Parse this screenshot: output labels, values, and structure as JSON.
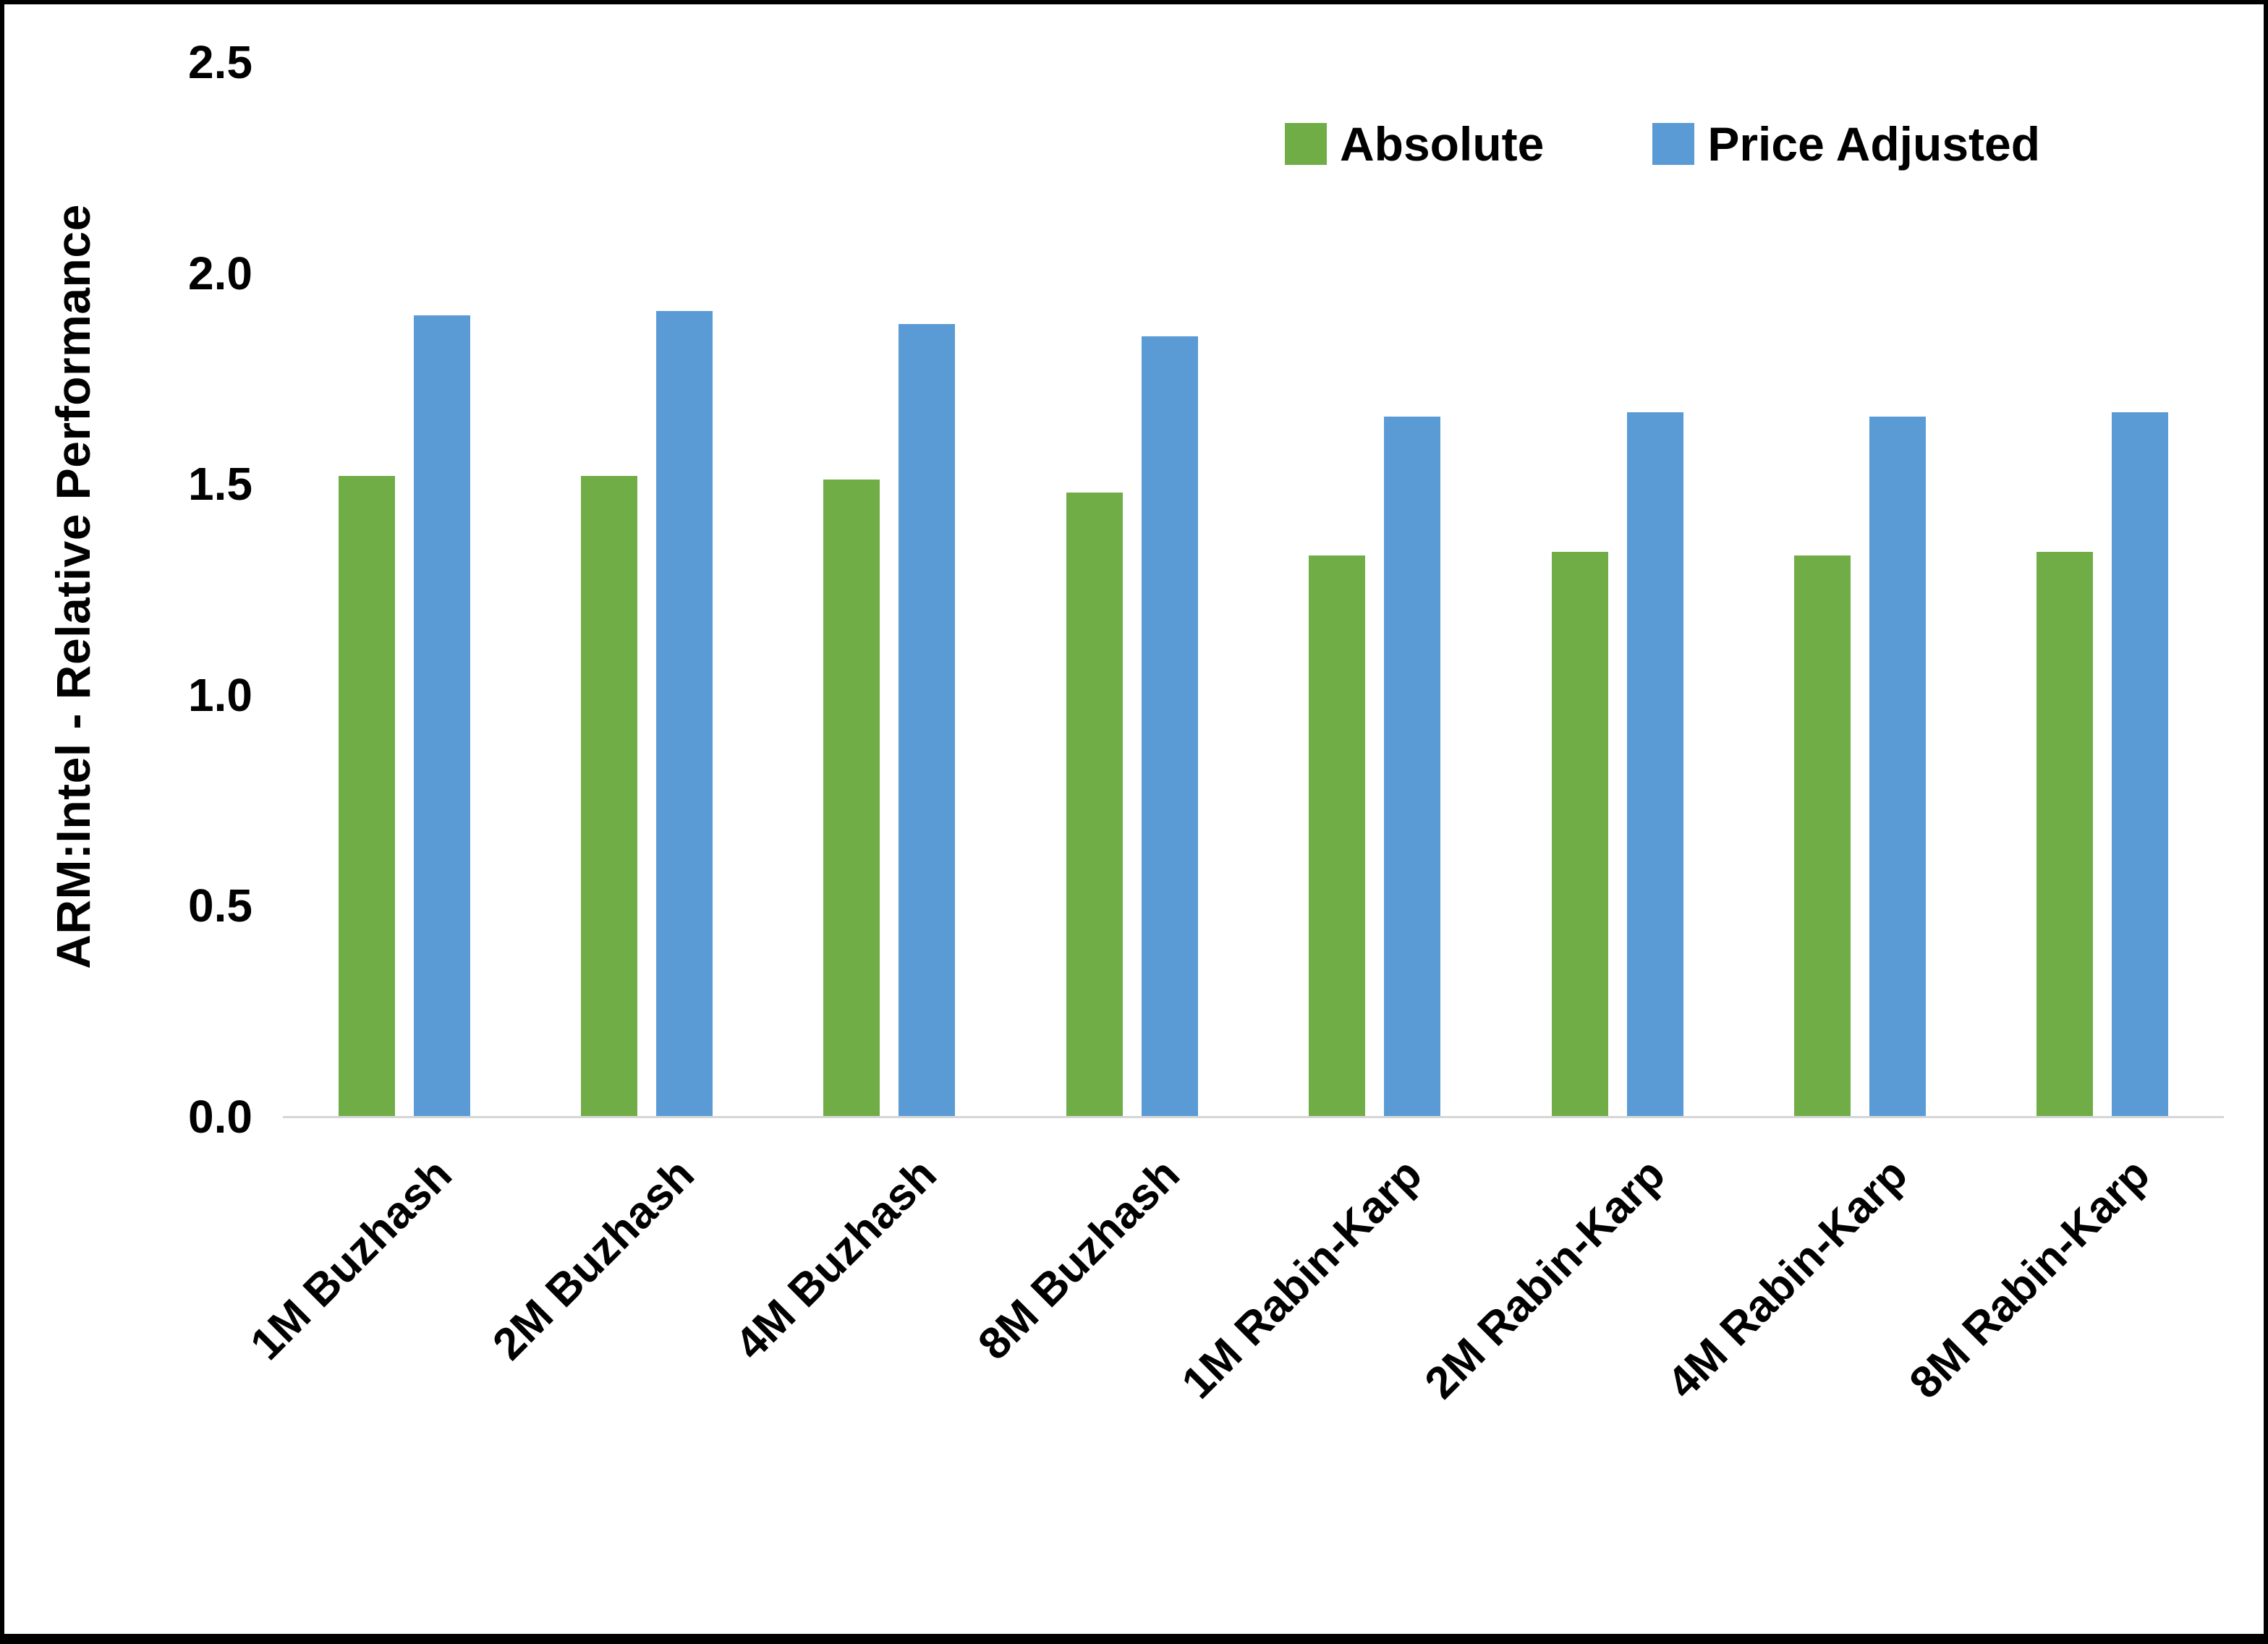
{
  "chart_data": {
    "type": "bar",
    "title": "",
    "ylabel": "ARM:Intel - Relative Performance",
    "xlabel": "",
    "categories": [
      "1M Buzhash",
      "2M Buzhash",
      "4M Buzhash",
      "8M Buzhash",
      "1M Rabin-Karp",
      "2M Rabin-Karp",
      "4M Rabin-Karp",
      "8M Rabin-Karp"
    ],
    "series": [
      {
        "name": "Absolute",
        "color": "#70AD47",
        "values": [
          1.52,
          1.52,
          1.51,
          1.48,
          1.33,
          1.34,
          1.33,
          1.34
        ]
      },
      {
        "name": "Price Adjusted",
        "color": "#5B9BD5",
        "values": [
          1.9,
          1.91,
          1.88,
          1.85,
          1.66,
          1.67,
          1.66,
          1.67
        ]
      }
    ],
    "ylim": [
      0,
      2.5
    ],
    "yticks": [
      0.0,
      0.5,
      1.0,
      1.5,
      2.0,
      2.5
    ],
    "ytick_format_decimals": 1,
    "grid": false,
    "legend_position": "top-right",
    "axis_line_color": "#d6d6d6",
    "background_color": "#ffffff",
    "border_color": "#000000"
  }
}
